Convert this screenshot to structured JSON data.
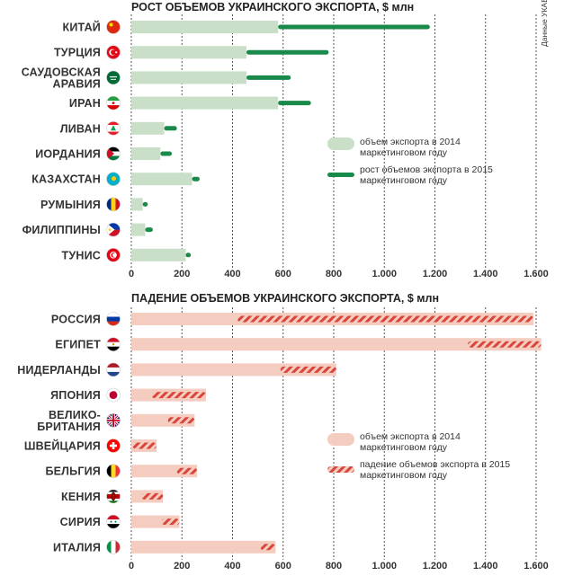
{
  "source_note": "Данные УКАБ",
  "chart_data": [
    {
      "type": "bar",
      "title": "РОСТ ОБЪЕМОВ УКРАИНСКОГО ЭКСПОРТА, $ млн",
      "categories": [
        [
          "КИТАЙ"
        ],
        [
          "ТУРЦИЯ"
        ],
        [
          "САУДОВСКАЯ",
          "АРАВИЯ"
        ],
        [
          "ИРАН"
        ],
        [
          "ЛИВАН"
        ],
        [
          "ИОРДАНИЯ"
        ],
        [
          "КАЗАХСТАН"
        ],
        [
          "РУМЫНИЯ"
        ],
        [
          "ФИЛИППИНЫ"
        ],
        [
          "ТУНИС"
        ]
      ],
      "flags": [
        "china-flag-icon",
        "turkey-flag-icon",
        "saudi-arabia-flag-icon",
        "iran-flag-icon",
        "lebanon-flag-icon",
        "jordan-flag-icon",
        "kazakhstan-flag-icon",
        "romania-flag-icon",
        "philippines-flag-icon",
        "tunisia-flag-icon"
      ],
      "series": [
        {
          "name": "объем экспорта в 2014 маркетинговом году",
          "values": [
            580,
            455,
            455,
            580,
            130,
            115,
            240,
            45,
            55,
            215
          ],
          "color": "#c9dfc8"
        },
        {
          "name": "рост объемов экспорта в 2015 маркетинговом году",
          "values": [
            1180,
            780,
            630,
            710,
            180,
            160,
            270,
            65,
            85,
            235
          ],
          "color": "#1a8a4a"
        }
      ],
      "xlim": [
        0,
        1600
      ],
      "ticks": [
        "0",
        "200",
        "400",
        "600",
        "800",
        "1.000",
        "1.200",
        "1.400",
        "1.600"
      ],
      "grid": true,
      "legend_position": "middle-right"
    },
    {
      "type": "bar",
      "title": "ПАДЕНИЕ ОБЪЕМОВ УКРАИНСКОГО ЭКСПОРТА, $ млн",
      "categories": [
        [
          "РОССИЯ"
        ],
        [
          "ЕГИПЕТ"
        ],
        [
          "НИДЕРЛАНДЫ"
        ],
        [
          "ЯПОНИЯ"
        ],
        [
          "ВЕЛИКО-",
          "БРИТАНИЯ"
        ],
        [
          "ШВЕЙЦАРИЯ"
        ],
        [
          "БЕЛЬГИЯ"
        ],
        [
          "КЕНИЯ"
        ],
        [
          "СИРИЯ"
        ],
        [
          "ИТАЛИЯ"
        ]
      ],
      "flags": [
        "russia-flag-icon",
        "egypt-flag-icon",
        "netherlands-flag-icon",
        "japan-flag-icon",
        "uk-flag-icon",
        "switzerland-flag-icon",
        "belgium-flag-icon",
        "kenya-flag-icon",
        "syria-flag-icon",
        "italy-flag-icon"
      ],
      "series": [
        {
          "name": "объем экспорта в 2014 маркетинговом году",
          "values": [
            1590,
            1620,
            810,
            295,
            250,
            100,
            260,
            125,
            190,
            570
          ],
          "color": "#f4cdc0"
        },
        {
          "name": "падение объемов экспорта в 2015 маркетинговом году",
          "values": [
            420,
            1330,
            590,
            80,
            145,
            5,
            180,
            40,
            120,
            510
          ],
          "color": "#d9453a"
        }
      ],
      "xlim": [
        0,
        1600
      ],
      "ticks": [
        "0",
        "200",
        "400",
        "600",
        "800",
        "1.000",
        "1.200",
        "1.400",
        "1.600"
      ],
      "grid": true,
      "legend_position": "middle-right"
    }
  ]
}
